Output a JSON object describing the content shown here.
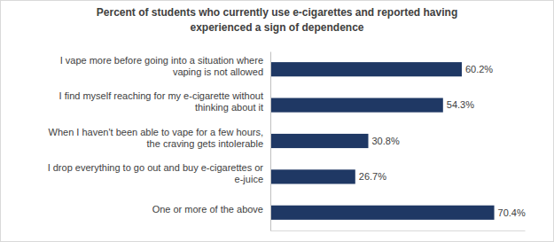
{
  "chart_data": {
    "type": "bar",
    "orientation": "horizontal",
    "title": "Percent of students who currently use e-cigarettes and reported having experienced a sign of dependence",
    "categories": [
      "I vape more before going into a situation where vaping is not allowed",
      "I find myself reaching for my e-cigarette without thinking about it",
      "When I haven't been able to vape for a few hours, the craving gets intolerable",
      "I drop everything to go out and buy e-cigarettes or e-juice",
      "One or more of the above"
    ],
    "values": [
      60.2,
      54.3,
      30.8,
      26.7,
      70.4
    ],
    "value_labels": [
      "60.2%",
      "54.3%",
      "30.8%",
      "26.7%",
      "70.4%"
    ],
    "data_labels": true,
    "color": "#1f3864",
    "xlim": [
      0,
      80
    ],
    "tick_labels": "y",
    "grid": false
  }
}
